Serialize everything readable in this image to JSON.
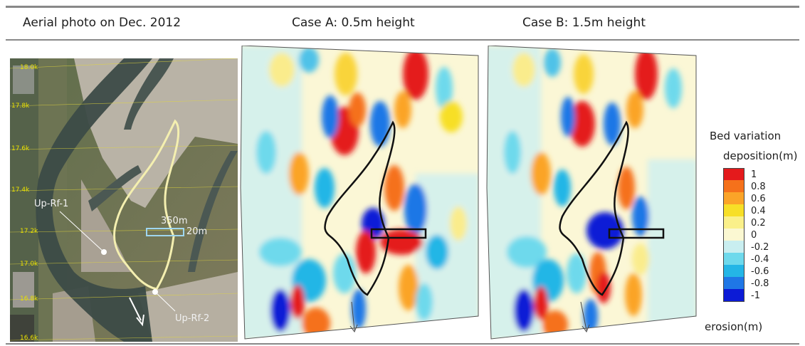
{
  "headers": {
    "aerial": "Aerial photo on Dec. 2012",
    "case_a": "Case A: 0.5m height",
    "case_b": "Case B: 1.5m height"
  },
  "aerial_labels": {
    "up_rf_1": "Up-Rf-1",
    "up_rf_2": "Up-Rf-2",
    "length": "350m",
    "width": "20m",
    "km_marks": [
      "18.0k",
      "17.8k",
      "17.6k",
      "17.4k",
      "17.2k",
      "17.0k",
      "16.8k",
      "16.6k"
    ]
  },
  "legend": {
    "title": "Bed variation",
    "top_label": "deposition(m)",
    "bottom_label": "erosion(m)",
    "ticks": [
      "1",
      "0.8",
      "0.6",
      "0.4",
      "0.2",
      "0",
      "-0.2",
      "-0.4",
      "-0.6",
      "-0.8",
      "-1"
    ],
    "colors": [
      "#e41a1c",
      "#f5711b",
      "#fba428",
      "#f7df27",
      "#faf08a",
      "#fbf8d2",
      "#c9eef0",
      "#6ed9ec",
      "#24b6e6",
      "#1f77e6",
      "#0c1bd6"
    ]
  }
}
